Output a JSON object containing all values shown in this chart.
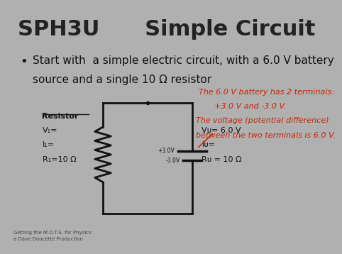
{
  "title": "SPH3U      Simple Circuit",
  "title_fontsize": 22,
  "title_color": "#222222",
  "bg_color": "#b0b0b0",
  "bullet_text_line1": "Start with  a simple electric circuit, with a 6.0 V battery",
  "bullet_text_line2": "source and a single 10 Ω resistor",
  "bullet_fontsize": 11,
  "bullet_color": "#111111",
  "red_text_line1": "The 6.0 V battery has 2 terminals:",
  "red_text_line2": "+3.0 V and -3.0 V.",
  "red_text_line3": "The voltage (potential difference)",
  "red_text_line4": "between the two terminals is 6.0 V.",
  "red_color": "#cc2200",
  "red_fontsize": 8,
  "left_label_title": "Resistor",
  "left_label_line1": "V₁=",
  "left_label_line2": "I₁=",
  "left_label_line3": "R₁=10 Ω",
  "right_label_line1": "Vᴜ= 6.0 V",
  "right_label_line2": "Iᴜ=",
  "right_label_line3": "Rᴜ = 10 Ω",
  "battery_plus": "+3.0V",
  "battery_minus": "-3.0V",
  "label_fontsize": 8,
  "footer_line1": "Getting the M.O.T.S. for Physics",
  "footer_line2": "a Dave Doucette Production",
  "footer_fontsize": 5
}
